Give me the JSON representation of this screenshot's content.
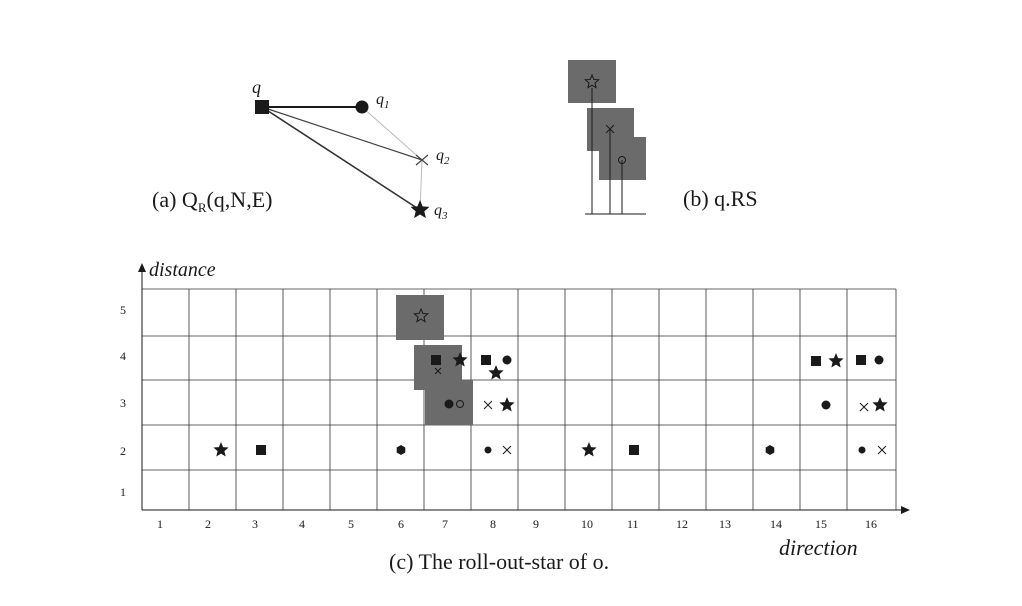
{
  "panel_a": {
    "caption_prefix": "(a) Q",
    "caption_sub": "R",
    "caption_suffix": "(q,N,E)",
    "node_q": "q",
    "node_q1": "q",
    "node_q1_sub": "1",
    "node_q2": "q",
    "node_q2_sub": "2",
    "node_q3": "q",
    "node_q3_sub": "3"
  },
  "panel_b": {
    "caption": "(b) q.RS"
  },
  "panel_c": {
    "caption": "(c) The roll-out-star of o.",
    "y_axis_label": "distance",
    "x_axis_label": "direction",
    "x_ticks": [
      "1",
      "2",
      "3",
      "4",
      "5",
      "6",
      "7",
      "8",
      "9",
      "10",
      "11",
      "12",
      "13",
      "14",
      "15",
      "16"
    ],
    "y_ticks": [
      "1",
      "2",
      "3",
      "4",
      "5"
    ]
  },
  "colors": {
    "ink": "#1a1a1a",
    "box_fill": "#6b6b6b",
    "grid": "#333333"
  }
}
